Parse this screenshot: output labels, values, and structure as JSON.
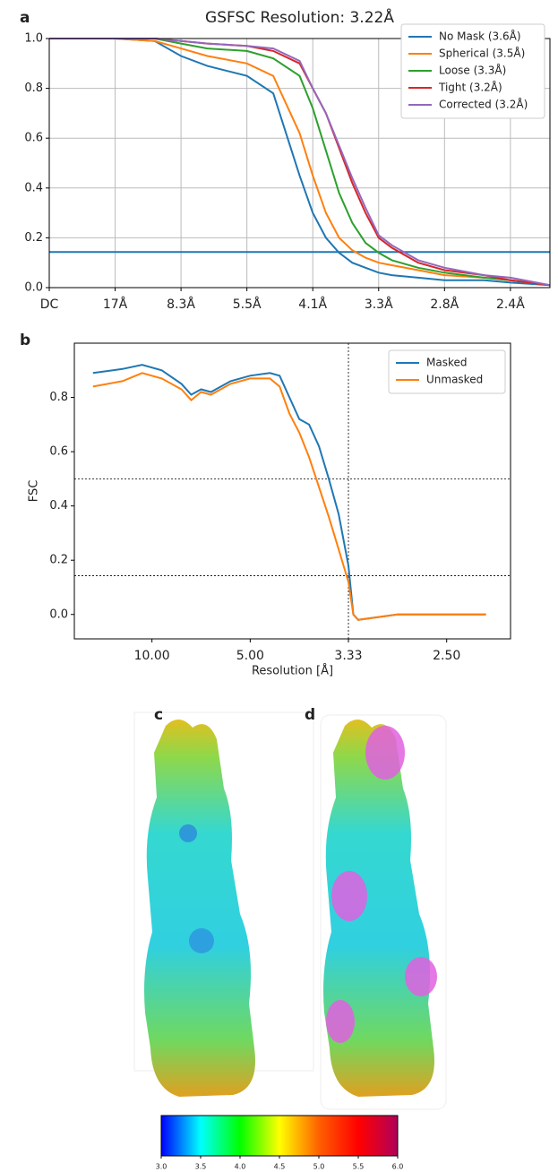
{
  "chart_data": [
    {
      "type": "line",
      "panel": "a",
      "title": "GSFSC Resolution: 3.22Å",
      "x": [
        0,
        1,
        1.6,
        2,
        2.4,
        3,
        3.4,
        3.8,
        4.0,
        4.2,
        4.4,
        4.6,
        4.8,
        5.0,
        5.2,
        5.6,
        6,
        6.6,
        7,
        7.6
      ],
      "series": [
        {
          "name": "No Mask (3.6Å)",
          "color": "#1f77b4",
          "values": [
            1,
            1,
            0.99,
            0.93,
            0.89,
            0.85,
            0.78,
            0.45,
            0.3,
            0.2,
            0.14,
            0.1,
            0.08,
            0.06,
            0.05,
            0.04,
            0.03,
            0.03,
            0.02,
            0.01
          ]
        },
        {
          "name": "Spherical (3.5Å)",
          "color": "#ff7f0e",
          "values": [
            1,
            1,
            0.99,
            0.96,
            0.93,
            0.9,
            0.85,
            0.62,
            0.45,
            0.3,
            0.2,
            0.15,
            0.12,
            0.1,
            0.09,
            0.07,
            0.05,
            0.04,
            0.03,
            0.01
          ]
        },
        {
          "name": "Loose (3.3Å)",
          "color": "#2ca02c",
          "values": [
            1,
            1,
            1,
            0.98,
            0.96,
            0.95,
            0.92,
            0.85,
            0.72,
            0.55,
            0.38,
            0.26,
            0.18,
            0.14,
            0.11,
            0.08,
            0.06,
            0.04,
            0.03,
            0.01
          ]
        },
        {
          "name": "Tight (3.2Å)",
          "color": "#d62728",
          "values": [
            1,
            1,
            1,
            0.99,
            0.98,
            0.97,
            0.95,
            0.9,
            0.8,
            0.7,
            0.56,
            0.42,
            0.3,
            0.2,
            0.16,
            0.1,
            0.07,
            0.05,
            0.03,
            0.01
          ]
        },
        {
          "name": "Corrected (3.2Å)",
          "color": "#9467bd",
          "values": [
            1,
            1,
            1,
            0.99,
            0.98,
            0.97,
            0.96,
            0.91,
            0.8,
            0.7,
            0.57,
            0.44,
            0.32,
            0.21,
            0.17,
            0.11,
            0.08,
            0.05,
            0.04,
            0.01
          ]
        }
      ],
      "xlim": [
        0,
        7.6
      ],
      "xticks": [
        {
          "value": 0,
          "label": "DC"
        },
        {
          "value": 1,
          "label": "17Å"
        },
        {
          "value": 2,
          "label": "8.3Å"
        },
        {
          "value": 3,
          "label": "5.5Å"
        },
        {
          "value": 4,
          "label": "4.1Å"
        },
        {
          "value": 5,
          "label": "3.3Å"
        },
        {
          "value": 6,
          "label": "2.8Å"
        },
        {
          "value": 7,
          "label": "2.4Å"
        }
      ],
      "ylim": [
        0,
        1
      ],
      "yticks": [
        {
          "value": 0,
          "label": "0.0"
        },
        0.2,
        0.4,
        0.6,
        0.8,
        {
          "value": 1,
          "label": "1.0"
        }
      ],
      "hlines": [
        {
          "value": 0.143,
          "color": "#1f77b4",
          "dashed": false
        }
      ],
      "vlines": [],
      "grid": true,
      "legend": "upper right"
    },
    {
      "type": "line",
      "panel": "b",
      "xlabel": "Resolution [Å]",
      "ylabel": "FSC",
      "x": [
        0.04,
        0.07,
        0.09,
        0.11,
        0.13,
        0.14,
        0.15,
        0.16,
        0.18,
        0.2,
        0.22,
        0.23,
        0.24,
        0.25,
        0.26,
        0.27,
        0.28,
        0.29,
        0.3,
        0.305,
        0.31,
        0.35,
        0.4,
        0.44
      ],
      "series": [
        {
          "name": "Masked",
          "color": "#1f77b4",
          "values": [
            0.89,
            0.905,
            0.92,
            0.9,
            0.85,
            0.81,
            0.83,
            0.82,
            0.86,
            0.88,
            0.89,
            0.88,
            0.8,
            0.72,
            0.7,
            0.62,
            0.5,
            0.37,
            0.18,
            0.0,
            -0.02,
            0.0,
            0.0,
            0.0
          ]
        },
        {
          "name": "Unmasked",
          "color": "#ff7f0e",
          "values": [
            0.84,
            0.86,
            0.89,
            0.87,
            0.83,
            0.79,
            0.82,
            0.81,
            0.85,
            0.87,
            0.87,
            0.84,
            0.74,
            0.67,
            0.58,
            0.47,
            0.36,
            0.24,
            0.12,
            0.0,
            -0.02,
            0.0,
            0.0,
            0.0
          ]
        }
      ],
      "xlim": [
        0.021,
        0.465
      ],
      "xticks": [
        {
          "value": 0.1,
          "label": "10.00"
        },
        {
          "value": 0.2,
          "label": "5.00"
        },
        {
          "value": 0.3,
          "label": "3.33"
        },
        {
          "value": 0.4,
          "label": "2.50"
        }
      ],
      "ylim": [
        -0.09,
        1.0
      ],
      "yticks": [
        {
          "value": 0,
          "label": "0.0"
        },
        0.2,
        0.4,
        0.6,
        0.8
      ],
      "hlines": [
        {
          "value": 0.5,
          "color": "#000000",
          "dashed": true
        },
        {
          "value": 0.143,
          "color": "#000000",
          "dashed": true
        }
      ],
      "vlines": [
        {
          "value": 0.3,
          "color": "#000000",
          "dashed": true
        }
      ],
      "grid": false,
      "legend": "upper right"
    }
  ],
  "maps": {
    "left_label": "c",
    "right_label": "d"
  },
  "colorbar": {
    "lim": [
      3,
      6
    ],
    "ticks": [
      {
        "value": 3,
        "label": "3.0"
      },
      {
        "value": 3.5,
        "label": "3.5"
      },
      {
        "value": 4,
        "label": "4.0"
      },
      {
        "value": 4.5,
        "label": "4.5"
      },
      {
        "value": 5,
        "label": "5.0"
      },
      {
        "value": 5.5,
        "label": "5.5"
      },
      {
        "value": 6,
        "label": "6.0"
      }
    ],
    "colors": [
      "#0000ff",
      "#00ffff",
      "#00ff00",
      "#ffff00",
      "#ff6000",
      "#ff0000",
      "#b0005a"
    ]
  }
}
